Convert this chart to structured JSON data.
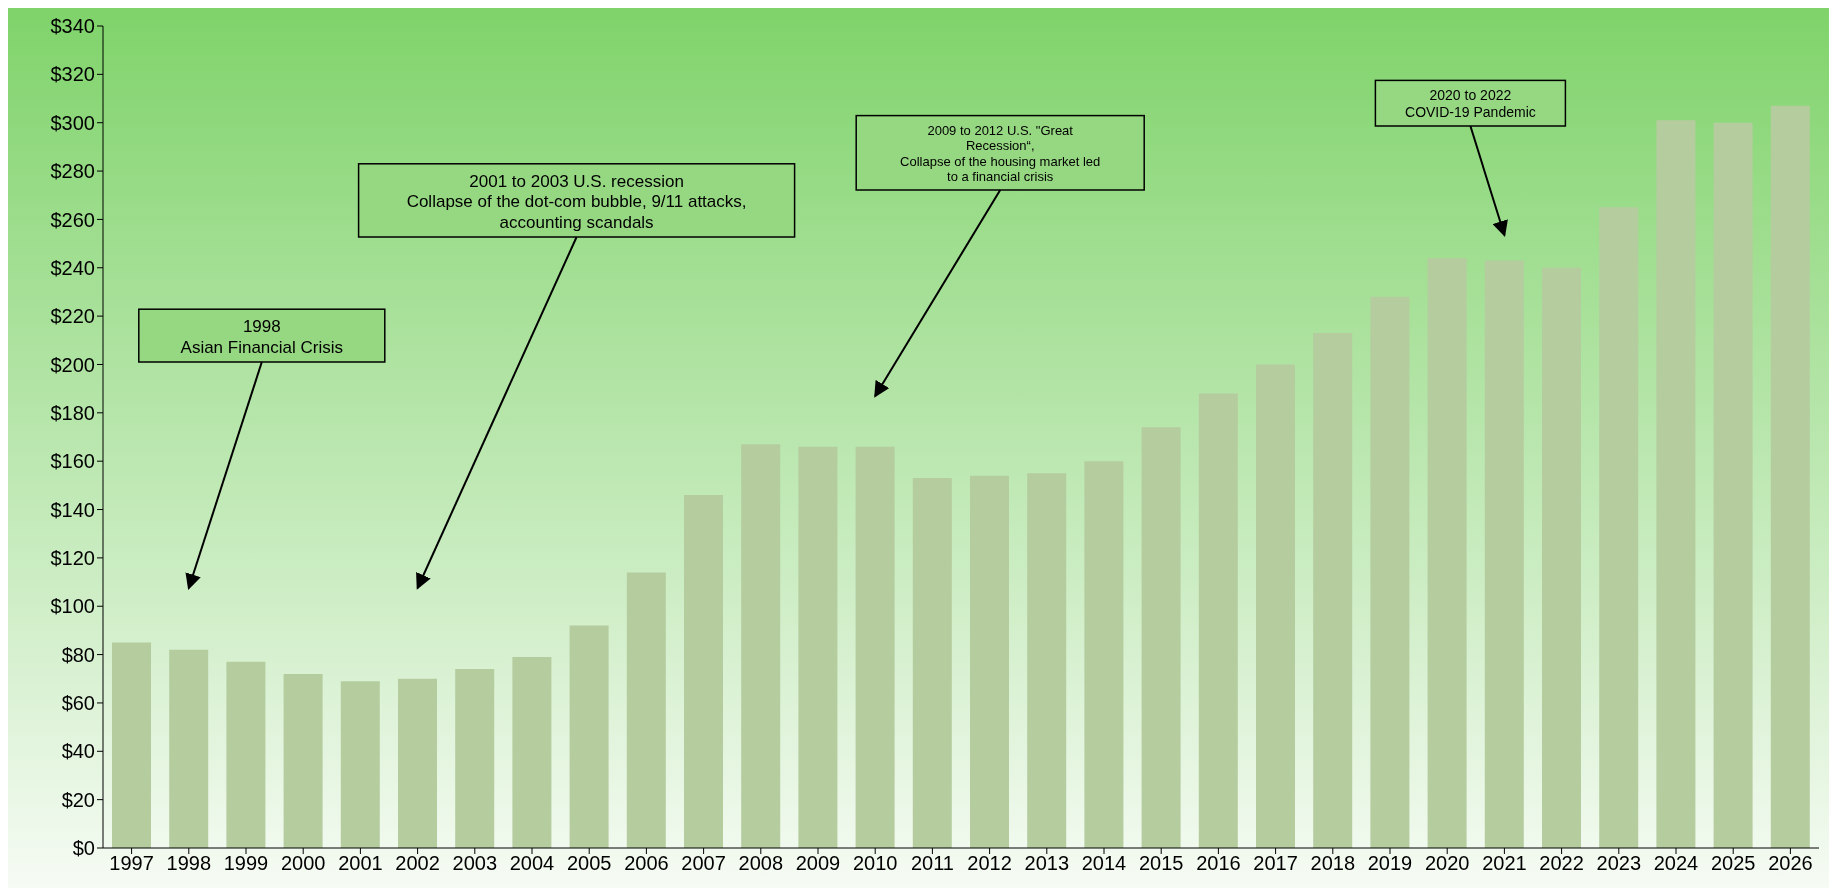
{
  "chart_data": {
    "type": "bar",
    "categories": [
      "1997",
      "1998",
      "1999",
      "2000",
      "2001",
      "2002",
      "2003",
      "2004",
      "2005",
      "2006",
      "2007",
      "2008",
      "2009",
      "2010",
      "2011",
      "2012",
      "2013",
      "2014",
      "2015",
      "2016",
      "2017",
      "2018",
      "2019",
      "2020",
      "2021",
      "2022",
      "2023",
      "2024",
      "2025",
      "2026"
    ],
    "values": [
      85,
      82,
      77,
      72,
      69,
      70,
      74,
      79,
      92,
      114,
      146,
      167,
      166,
      166,
      153,
      154,
      155,
      160,
      174,
      188,
      200,
      213,
      228,
      244,
      243,
      240,
      265,
      301,
      300,
      307
    ],
    "color": "#b5cc9f",
    "ylim": [
      0,
      340
    ],
    "yticks": [
      {
        "value": 0,
        "label": "$0"
      },
      {
        "value": 20,
        "label": "$20"
      },
      {
        "value": 40,
        "label": "$40"
      },
      {
        "value": 60,
        "label": "$60"
      },
      {
        "value": 80,
        "label": "$80"
      },
      {
        "value": 100,
        "label": "$100"
      },
      {
        "value": 120,
        "label": "$120"
      },
      {
        "value": 140,
        "label": "$140"
      },
      {
        "value": 160,
        "label": "$160"
      },
      {
        "value": 180,
        "label": "$180"
      },
      {
        "value": 200,
        "label": "$200"
      },
      {
        "value": 220,
        "label": "$220"
      },
      {
        "value": 240,
        "label": "$240"
      },
      {
        "value": 260,
        "label": "$260"
      },
      {
        "value": 280,
        "label": "$280"
      },
      {
        "value": 300,
        "label": "$300"
      },
      {
        "value": 320,
        "label": "$320"
      },
      {
        "value": 340,
        "label": "$340"
      }
    ],
    "grid": false,
    "legend": false,
    "annotations": [
      "1998\nAsian Financial Crisis",
      "2001 to 2003 U.S. recession\nCollapse of the dot-com bubble, 9/11 attacks,\naccounting scandals",
      "2009 to 2012 U.S. \"Great\nRecession“,\nCollapse of the housing market led\nto a financial crisis",
      "2020 to 2022\nCOVID-19 Pandemic"
    ]
  }
}
